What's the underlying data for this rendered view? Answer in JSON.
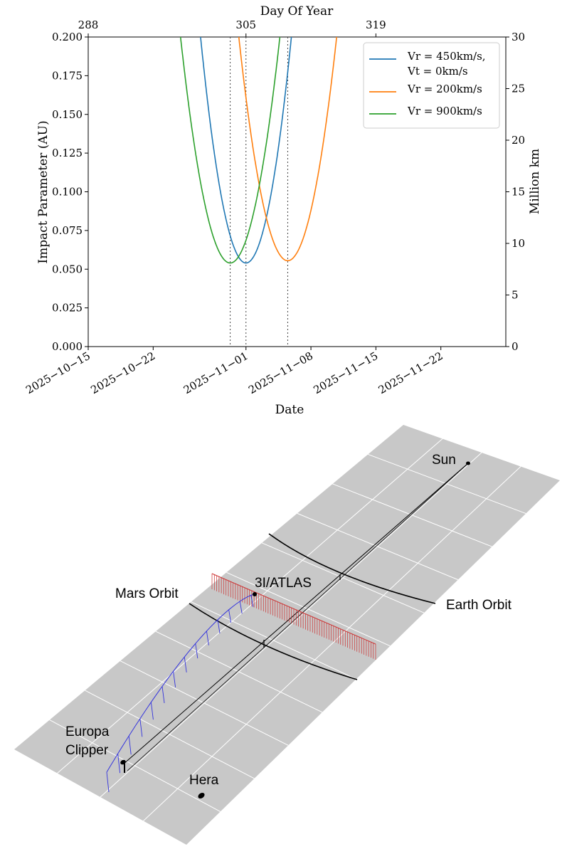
{
  "chart_data": [
    {
      "type": "line",
      "title": "",
      "xlabel": "Date",
      "ylabel": "Impact Parameter (AU)",
      "y2label": "Million km",
      "top_xlabel": "Day Of Year",
      "xlim": [
        "2025-10-15",
        "2025-11-29"
      ],
      "ylim": [
        0,
        0.2
      ],
      "y2lim": [
        0,
        30
      ],
      "x_ticks": [
        "2025−10−15",
        "2025−10−22",
        "2025−11−01",
        "2025−11−08",
        "2025−11−15",
        "2025−11−22"
      ],
      "x_tick_days": [
        0,
        7,
        17,
        24,
        31,
        38
      ],
      "y_ticks": [
        "0.000",
        "0.025",
        "0.050",
        "0.075",
        "0.100",
        "0.125",
        "0.150",
        "0.175",
        "0.200"
      ],
      "y2_ticks": [
        "0",
        "5",
        "10",
        "15",
        "20",
        "25",
        "30"
      ],
      "top_ticks": [
        "288",
        "305",
        "319"
      ],
      "top_tick_days": [
        0,
        17,
        31
      ],
      "grid": false,
      "legend_position": "top-right",
      "series": [
        {
          "name": "Vr = 450km/s,\nVt = 0km/s",
          "legend_lines": [
            "Vr = 450km/s,",
            "Vt = 0km/s"
          ],
          "color": "#1f77b4",
          "min_day": 17.0,
          "min_value": 0.054,
          "k": 0.0061
        },
        {
          "name": "Vr = 200km/s",
          "legend_lines": [
            "Vr = 200km/s"
          ],
          "color": "#ff7f0e",
          "min_day": 21.5,
          "min_value": 0.0555,
          "k": 0.0052
        },
        {
          "name": "Vr = 900km/s",
          "legend_lines": [
            "Vr = 900km/s"
          ],
          "color": "#2ca02c",
          "min_day": 15.3,
          "min_value": 0.054,
          "k": 0.0051
        }
      ],
      "vertical_markers_days": [
        15.3,
        17.0,
        21.5
      ]
    },
    {
      "type": "diagram-3d",
      "labels": {
        "sun": "Sun",
        "earth_orbit": "Earth Orbit",
        "mars_orbit": "Mars Orbit",
        "atlas": "3I/ATLAS",
        "clipper_line1": "Europa",
        "clipper_line2": "Clipper",
        "hera": "Hera"
      },
      "colors": {
        "plane": "#c8c8c8",
        "plane_grid": "#ffffff",
        "atlas_track": "#cc3333",
        "clipper_track": "#3333dd",
        "orbit": "#000000"
      }
    }
  ]
}
